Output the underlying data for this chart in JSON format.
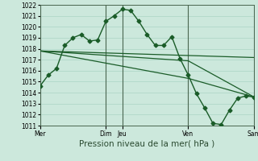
{
  "background_color": "#cce8dc",
  "grid_color": "#aad4c4",
  "line_color": "#1a5c28",
  "ylim": [
    1011,
    1022
  ],
  "yticks": [
    1011,
    1012,
    1013,
    1014,
    1015,
    1016,
    1017,
    1018,
    1019,
    1020,
    1021,
    1022
  ],
  "xlabel": "Pression niveau de la mer( hPa )",
  "xlabel_fontsize": 7.5,
  "xtick_labels": [
    "Mer",
    "Dim",
    "Jeu",
    "Ven",
    "Sam"
  ],
  "xtick_positions": [
    0,
    4,
    5,
    9,
    13
  ],
  "series": [
    {
      "x": [
        0,
        0.5,
        1,
        1.5,
        2,
        2.5,
        3,
        3.5,
        4,
        4.5,
        5,
        5.5,
        6,
        6.5,
        7,
        7.5,
        8,
        8.5,
        9,
        9.5,
        10,
        10.5,
        11,
        11.5,
        12,
        12.5,
        13
      ],
      "y": [
        1014.6,
        1015.6,
        1016.2,
        1018.3,
        1019.0,
        1019.3,
        1018.7,
        1018.8,
        1020.5,
        1021.0,
        1021.6,
        1021.5,
        1020.5,
        1019.3,
        1018.3,
        1018.3,
        1019.1,
        1017.1,
        1015.6,
        1013.9,
        1012.6,
        1011.2,
        1011.1,
        1012.4,
        1013.5,
        1013.7,
        1013.6
      ],
      "marker": "D",
      "markersize": 2.5,
      "linewidth": 1.0
    },
    {
      "x": [
        0,
        13
      ],
      "y": [
        1017.8,
        1017.2
      ],
      "linewidth": 0.9
    },
    {
      "x": [
        0,
        9,
        13
      ],
      "y": [
        1017.8,
        1016.9,
        1013.6
      ],
      "linewidth": 0.9
    },
    {
      "x": [
        0,
        9,
        13
      ],
      "y": [
        1017.8,
        1015.3,
        1013.6
      ],
      "linewidth": 0.9
    }
  ],
  "vlines": [
    0,
    4,
    5,
    9,
    13
  ],
  "vline_color": "#4a6650",
  "tick_fontsize": 5.5,
  "ytick_fontsize": 5.5
}
